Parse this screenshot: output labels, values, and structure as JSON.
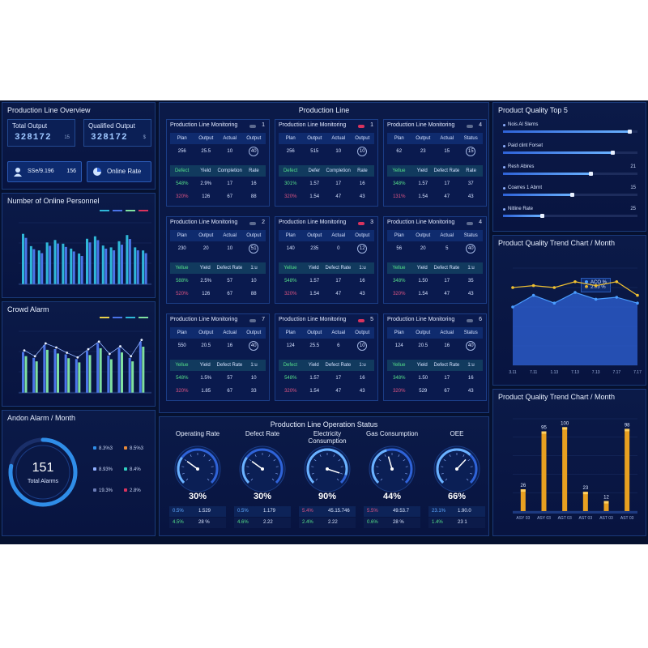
{
  "overview": {
    "title": "Production Line Overview",
    "total_label": "Total Output",
    "total_value": "328172",
    "total_unit": "15",
    "qualified_label": "Qualified Output",
    "qualified_value": "328172",
    "qualified_unit": "$",
    "btn1_text": "SSe/9.196",
    "btn1_num": "156",
    "btn2_text": "Online Rate"
  },
  "personnel": {
    "title": "Number of Online Personnel",
    "bars": [
      0.82,
      0.62,
      0.55,
      0.68,
      0.72,
      0.66,
      0.58,
      0.5,
      0.74,
      0.78,
      0.63,
      0.6,
      0.7,
      0.8,
      0.6,
      0.55
    ],
    "colors": {
      "a": "#2fb8d8",
      "b": "#4a74e8",
      "c": "#7fe0a0"
    }
  },
  "crowd": {
    "title": "Crowd Alarm",
    "bars": [
      0.7,
      0.6,
      0.82,
      0.75,
      0.66,
      0.58,
      0.72,
      0.85,
      0.64,
      0.77,
      0.6,
      0.88
    ]
  },
  "andon": {
    "title": "Andon Alarm / Month",
    "total": "151",
    "total_label": "Total Alarms",
    "legend": [
      "8.3%3",
      "8.5%3",
      "8.93%",
      "8.4%",
      "19.3%",
      "2.8%"
    ],
    "legend_colors": [
      "#2f8de8",
      "#e88a3a",
      "#8fb0ff",
      "#2fd0c0",
      "#6a7bb5",
      "#d9335e"
    ],
    "ring_fraction": 0.78
  },
  "center": {
    "title": "Production Line"
  },
  "monitors": [
    {
      "title": "Production Line Monitoring",
      "num": "1",
      "red": false,
      "h1": [
        "Plan",
        "Output",
        "Actual",
        "Output"
      ],
      "r1": [
        "256",
        "25.5",
        "10",
        "40"
      ],
      "h2": [
        "Defect",
        "Yield",
        "Completion",
        "Rate"
      ],
      "r2": [
        "548%",
        "2.9%",
        "17",
        "16"
      ],
      "r3": [
        "320%",
        "126",
        "67",
        "88"
      ]
    },
    {
      "title": "Production Line Monitoring",
      "num": "1",
      "red": true,
      "h1": [
        "Plan",
        "Output",
        "Actual",
        "Output"
      ],
      "r1": [
        "256",
        "515",
        "10",
        "10"
      ],
      "h2": [
        "Defect",
        "Defer",
        "Completion",
        "Rate"
      ],
      "r2": [
        "301%",
        "1.57",
        "17",
        "16"
      ],
      "r3": [
        "320%",
        "1.54",
        "47",
        "43"
      ]
    },
    {
      "title": "Production Line Monitoring",
      "num": "4",
      "red": false,
      "h1": [
        "Plan",
        "Output",
        "Actual",
        "Status"
      ],
      "r1": [
        "62",
        "23",
        "15",
        "15"
      ],
      "h2": [
        "Yellue",
        "Yield",
        "Defect Rate",
        "Rate"
      ],
      "r2": [
        "348%",
        "1.57",
        "17",
        "37"
      ],
      "r3": [
        "131%",
        "1.54",
        "47",
        "43"
      ]
    },
    {
      "title": "Production Line Monitoring",
      "num": "2",
      "red": false,
      "h1": [
        "Plan",
        "Output",
        "Actual",
        "Output"
      ],
      "r1": [
        "230",
        "20",
        "10",
        "51"
      ],
      "h2": [
        "Yellue",
        "Yield",
        "Defect Rate",
        "1:u"
      ],
      "r2": [
        "588%",
        "2.5%",
        "57",
        "10"
      ],
      "r3": [
        "520%",
        "126",
        "67",
        "88"
      ]
    },
    {
      "title": "Production Line Monitoring",
      "num": "3",
      "red": true,
      "h1": [
        "Plan",
        "Output",
        "Actual",
        "Output"
      ],
      "r1": [
        "140",
        "235",
        "0",
        "12"
      ],
      "h2": [
        "Yellue",
        "Yield",
        "Defect Rate",
        "1:u"
      ],
      "r2": [
        "548%",
        "1.57",
        "17",
        "16"
      ],
      "r3": [
        "320%",
        "1.54",
        "47",
        "43"
      ]
    },
    {
      "title": "Production Line Monitoring",
      "num": "4",
      "red": false,
      "h1": [
        "Plan",
        "Output",
        "Actual",
        "Status"
      ],
      "r1": [
        "56",
        "20",
        "5",
        "40"
      ],
      "h2": [
        "Yellue",
        "Yield",
        "Defect Rate",
        "1:u"
      ],
      "r2": [
        "348%",
        "1.50",
        "17",
        "35"
      ],
      "r3": [
        "320%",
        "1.54",
        "47",
        "43"
      ]
    },
    {
      "title": "Production Line Monitoring",
      "num": "7",
      "red": false,
      "h1": [
        "Plan",
        "Output",
        "Actual",
        "Output"
      ],
      "r1": [
        "550",
        "20.5",
        "16",
        "40"
      ],
      "h2": [
        "Yellue",
        "Yield",
        "Defect Rate",
        "1:u"
      ],
      "r2": [
        "548%",
        "1.5%",
        "57",
        "10"
      ],
      "r3": [
        "320%",
        "1.85",
        "67",
        "33"
      ]
    },
    {
      "title": "Production Line Monitoring",
      "num": "5",
      "red": true,
      "h1": [
        "Plan",
        "Output",
        "Actual",
        "Output"
      ],
      "r1": [
        "124",
        "25.5",
        "6",
        "10"
      ],
      "h2": [
        "Defect",
        "Yield",
        "Defect Rate",
        "1:u"
      ],
      "r2": [
        "548%",
        "1.57",
        "17",
        "16"
      ],
      "r3": [
        "320%",
        "1.54",
        "47",
        "43"
      ]
    },
    {
      "title": "Production Line Monitoring",
      "num": "6",
      "red": false,
      "h1": [
        "Plan",
        "Output",
        "Actual",
        "Status"
      ],
      "r1": [
        "124",
        "20.5",
        "16",
        "40"
      ],
      "h2": [
        "Yellue",
        "Yield",
        "Defect Rate",
        "1:u"
      ],
      "r2": [
        "348%",
        "1.50",
        "17",
        "16"
      ],
      "r3": [
        "320%",
        "529",
        "67",
        "43"
      ]
    }
  ],
  "operation": {
    "title": "Production Line Operation Status",
    "gauges": [
      {
        "label": "Operating Rate",
        "value": "30%",
        "level": 0.3,
        "rows": [
          [
            "0.5%",
            "1.529"
          ],
          [
            "4.5%",
            "28 %"
          ]
        ]
      },
      {
        "label": "Defect Rate",
        "value": "30%",
        "level": 0.3,
        "rows": [
          [
            "0.5%",
            "1.179"
          ],
          [
            "4.6%",
            "2.22"
          ]
        ]
      },
      {
        "label": "Electricity Consumption",
        "value": "90%",
        "level": 0.9,
        "rows": [
          [
            "5.4%",
            "45.15.746"
          ],
          [
            "2.4%",
            "2.22"
          ]
        ]
      },
      {
        "label": "Gas Consumption",
        "value": "44%",
        "level": 0.44,
        "rows": [
          [
            "5.5%",
            "49.53.7"
          ],
          [
            "0.6%",
            "28 %"
          ]
        ]
      },
      {
        "label": "OEE",
        "value": "66%",
        "level": 0.66,
        "rows": [
          [
            "23.1%",
            "1.90.0"
          ],
          [
            "1.4%",
            "23 1"
          ]
        ]
      }
    ]
  },
  "top5": {
    "title": "Product Quality Top 5",
    "items": [
      {
        "label": "Nois Al Slerns",
        "value": "",
        "fill": 0.95
      },
      {
        "label": "Paid clint Forset",
        "value": "",
        "fill": 0.82
      },
      {
        "label": "Resh Abires",
        "value": "21",
        "fill": 0.66
      },
      {
        "label": "Coarres 1 Abrnt",
        "value": "15",
        "fill": 0.52
      },
      {
        "label": "Nitline Rate",
        "value": "25",
        "fill": 0.3
      }
    ]
  },
  "trend1": {
    "title": "Product Quality Trend Chart / Month",
    "legend": [
      "ACO %",
      "2.03 %"
    ],
    "xlabels": [
      "3.11",
      "7.11",
      "1.13",
      "7.13",
      "7.13",
      "7.17",
      "7.17"
    ]
  },
  "trend2": {
    "title": "Product Quality Trend Chart / Month",
    "values": [
      "26",
      "95",
      "100",
      "23",
      "12",
      "98"
    ],
    "xlabels": [
      "ASY 03",
      "ASY 03",
      "AGT 03",
      "AST 03",
      "AST 03",
      "AST 03"
    ]
  },
  "chart_data": [
    {
      "type": "line",
      "title": "Product Quality Trend Chart / Month",
      "x": [
        "3.11",
        "7.11",
        "1.13",
        "7.13",
        "7.13",
        "7.17",
        "7.17"
      ],
      "series": [
        {
          "name": "ACO %",
          "values": [
            80,
            82,
            80,
            86,
            82,
            86,
            72
          ]
        },
        {
          "name": "2.03 %",
          "values": [
            60,
            72,
            64,
            75,
            68,
            70,
            64
          ]
        }
      ],
      "ylim": [
        0,
        100
      ]
    },
    {
      "type": "bar",
      "title": "Product Quality Trend Chart / Month",
      "categories": [
        "ASY 03",
        "ASY 03",
        "AGT 03",
        "AST 03",
        "AST 03",
        "AST 03"
      ],
      "values": [
        26,
        95,
        100,
        23,
        12,
        98
      ],
      "ylim": [
        0,
        110
      ]
    }
  ]
}
